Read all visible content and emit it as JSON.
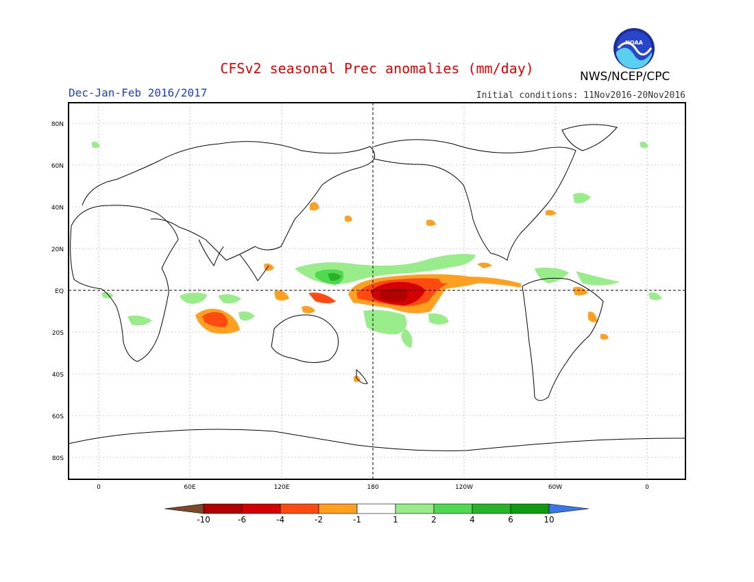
{
  "header": {
    "title": "CFSv2 seasonal Prec anomalies (mm/day)",
    "season": "Dec-Jan-Feb 2016/2017",
    "initial_conditions": "Initial conditions: 11Nov2016-20Nov2016",
    "agency": "NWS/NCEP/CPC",
    "logo_text": "NOAA"
  },
  "axes": {
    "lat_labels": [
      "80N",
      "60N",
      "40N",
      "20N",
      "EQ",
      "20S",
      "40S",
      "60S",
      "80S"
    ],
    "lon_labels": [
      "0",
      "60E",
      "120E",
      "180",
      "120W",
      "60W",
      "0"
    ]
  },
  "colorbar": {
    "labels": [
      "-10",
      "-6",
      "-4",
      "-2",
      "-1",
      "1",
      "2",
      "4",
      "6",
      "10"
    ],
    "colors": [
      "#7a4a2a",
      "#b00000",
      "#d40000",
      "#ff4a10",
      "#ffa020",
      "#ffffff",
      "#98ec8a",
      "#50d850",
      "#28b428",
      "#129a12",
      "#3a78e8"
    ]
  },
  "colors": {
    "title": "#e00000",
    "season": "#1a3fc8",
    "wet_light": "#98ec8a",
    "wet_mid": "#50d850",
    "wet_dark": "#28b428",
    "dry_light": "#ffa020",
    "dry_mid": "#ff4a10",
    "dry_dark": "#d40000",
    "dry_darkest": "#b00000"
  }
}
